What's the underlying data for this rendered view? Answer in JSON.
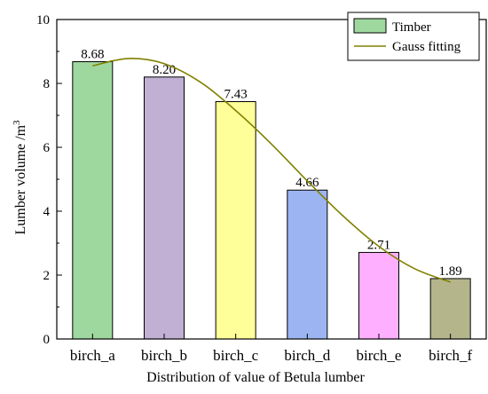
{
  "chart_data": {
    "type": "bar",
    "categories": [
      "birch_a",
      "birch_b",
      "birch_c",
      "birch_d",
      "birch_e",
      "birch_f"
    ],
    "series": [
      {
        "name": "Timber",
        "values": [
          8.68,
          8.2,
          7.43,
          4.66,
          2.71,
          1.89
        ],
        "value_labels": [
          "8.68",
          "8.20",
          "7.43",
          "4.66",
          "2.71",
          "1.89"
        ],
        "colors": [
          "#9fd89f",
          "#c1b0d4",
          "#ffff99",
          "#9db4f2",
          "#ffafff",
          "#b5b58c"
        ]
      },
      {
        "name": "Gauss fitting",
        "type": "line",
        "color": "#808000",
        "x": [
          0.0,
          0.5,
          1.0,
          1.5,
          2.0,
          2.5,
          3.0,
          3.5,
          4.0,
          4.5,
          5.0
        ],
        "y": [
          8.55,
          8.78,
          8.62,
          8.05,
          7.15,
          6.1,
          4.95,
          3.85,
          2.9,
          2.2,
          1.78
        ]
      }
    ],
    "xlabel": "Distribution of value of Betula lumber",
    "ylabel": "Lumber volume /m",
    "ylabel_superscript": "3",
    "ylim": [
      0,
      10
    ],
    "yticks": [
      0,
      2,
      4,
      6,
      8,
      10
    ],
    "grid": false,
    "legend": "top-right"
  }
}
